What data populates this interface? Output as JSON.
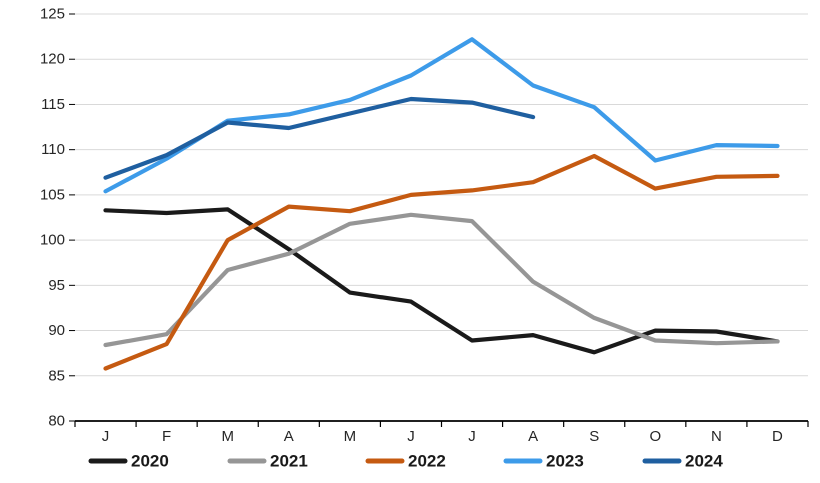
{
  "chart_data": {
    "type": "line",
    "title": "",
    "xlabel": "",
    "ylabel": "",
    "months": [
      "J",
      "F",
      "M",
      "A",
      "M",
      "J",
      "J",
      "A",
      "S",
      "O",
      "N",
      "D"
    ],
    "y_axis": {
      "min": 80,
      "max": 125,
      "step": 5,
      "tick_labels": [
        "80",
        "85",
        "90",
        "95",
        "100",
        "105",
        "110",
        "115",
        "120",
        "125"
      ]
    },
    "grid": "horizontal",
    "legend_position": "bottom",
    "series": [
      {
        "name": "2020",
        "color": "#1A1A1A",
        "values": [
          103.3,
          103.0,
          103.4,
          99.0,
          94.2,
          93.2,
          88.9,
          89.5,
          87.6,
          90.0,
          89.9,
          88.8
        ]
      },
      {
        "name": "2021",
        "color": "#969696",
        "values": [
          88.4,
          89.6,
          96.7,
          98.5,
          101.8,
          102.8,
          102.1,
          95.4,
          91.4,
          88.9,
          88.6,
          88.8
        ]
      },
      {
        "name": "2022",
        "color": "#C55A11",
        "values": [
          85.8,
          88.5,
          100.0,
          103.7,
          103.2,
          105.0,
          105.5,
          106.4,
          109.3,
          105.7,
          107.0,
          107.1
        ]
      },
      {
        "name": "2023",
        "color": "#3D9BE9",
        "values": [
          105.4,
          109.0,
          113.2,
          113.9,
          115.5,
          118.2,
          122.2,
          117.1,
          114.7,
          108.8,
          110.5,
          110.4
        ]
      },
      {
        "name": "2024",
        "color": "#1F5FA0",
        "values": [
          106.9,
          109.4,
          113.0,
          112.4,
          114.0,
          115.6,
          115.2,
          113.6,
          null,
          null,
          null,
          null
        ]
      }
    ],
    "style": {
      "gridline_color": "#D9D9D9",
      "axis_color": "#000000",
      "text_color": "#262626",
      "background": "#FFFFFF"
    }
  }
}
